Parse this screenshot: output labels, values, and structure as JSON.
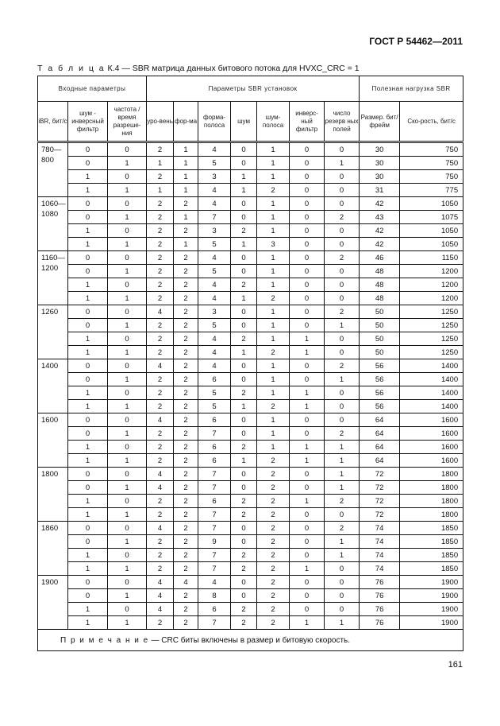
{
  "doc_header": "ГОСТ Р 54462—2011",
  "caption": {
    "label": "Т а б л и ц а",
    "text": "К.4 — SBR матрица данных битового потока для HVXC_CRC = 1"
  },
  "table": {
    "groups": [
      "Входные параметры",
      "Параметры SBR установок",
      "Полезная нагрузка SBR"
    ],
    "columns": [
      "iBR, бит/с",
      "шум - инверсный фильтр",
      "частота / время разреше-ния",
      "уро-вень",
      "фор-ма",
      "форма-полоса",
      "шум",
      "шум-полоса",
      "инверс-ный фильтр",
      "число резерв ных полей",
      "Размер. бит/фрейм",
      "Ско-рость, бит/с"
    ],
    "groups_rows": [
      {
        "ibr": "780— 800",
        "rows": [
          [
            0,
            0,
            2,
            1,
            4,
            0,
            1,
            0,
            0,
            30,
            750
          ],
          [
            0,
            1,
            1,
            1,
            5,
            0,
            1,
            0,
            1,
            30,
            750
          ],
          [
            1,
            0,
            2,
            1,
            3,
            1,
            1,
            0,
            0,
            30,
            750
          ],
          [
            1,
            1,
            1,
            1,
            4,
            1,
            2,
            0,
            0,
            31,
            775
          ]
        ]
      },
      {
        "ibr": "1060— 1080",
        "rows": [
          [
            0,
            0,
            2,
            2,
            4,
            0,
            1,
            0,
            0,
            42,
            1050
          ],
          [
            0,
            1,
            2,
            1,
            7,
            0,
            1,
            0,
            2,
            43,
            1075
          ],
          [
            1,
            0,
            2,
            2,
            3,
            2,
            1,
            0,
            0,
            42,
            1050
          ],
          [
            1,
            1,
            2,
            1,
            5,
            1,
            3,
            0,
            0,
            42,
            1050
          ]
        ]
      },
      {
        "ibr": "1160— 1200",
        "rows": [
          [
            0,
            0,
            2,
            2,
            4,
            0,
            1,
            0,
            2,
            46,
            1150
          ],
          [
            0,
            1,
            2,
            2,
            5,
            0,
            1,
            0,
            0,
            48,
            1200
          ],
          [
            1,
            0,
            2,
            2,
            4,
            2,
            1,
            0,
            0,
            48,
            1200
          ],
          [
            1,
            1,
            2,
            2,
            4,
            1,
            2,
            0,
            0,
            48,
            1200
          ]
        ]
      },
      {
        "ibr": "1260",
        "rows": [
          [
            0,
            0,
            4,
            2,
            3,
            0,
            1,
            0,
            2,
            50,
            1250
          ],
          [
            0,
            1,
            2,
            2,
            5,
            0,
            1,
            0,
            1,
            50,
            1250
          ],
          [
            1,
            0,
            2,
            2,
            4,
            2,
            1,
            1,
            0,
            50,
            1250
          ],
          [
            1,
            1,
            2,
            2,
            4,
            1,
            2,
            1,
            0,
            50,
            1250
          ]
        ]
      },
      {
        "ibr": "1400",
        "rows": [
          [
            0,
            0,
            4,
            2,
            4,
            0,
            1,
            0,
            2,
            56,
            1400
          ],
          [
            0,
            1,
            2,
            2,
            6,
            0,
            1,
            0,
            1,
            56,
            1400
          ],
          [
            1,
            0,
            2,
            2,
            5,
            2,
            1,
            1,
            0,
            56,
            1400
          ],
          [
            1,
            1,
            2,
            2,
            5,
            1,
            2,
            1,
            0,
            56,
            1400
          ]
        ]
      },
      {
        "ibr": "1600",
        "rows": [
          [
            0,
            0,
            4,
            2,
            6,
            0,
            1,
            0,
            0,
            64,
            1600
          ],
          [
            0,
            1,
            2,
            2,
            7,
            0,
            1,
            0,
            2,
            64,
            1600
          ],
          [
            1,
            0,
            2,
            2,
            6,
            2,
            1,
            1,
            1,
            64,
            1600
          ],
          [
            1,
            1,
            2,
            2,
            6,
            1,
            2,
            1,
            1,
            64,
            1600
          ]
        ]
      },
      {
        "ibr": "1800",
        "rows": [
          [
            0,
            0,
            4,
            2,
            7,
            0,
            2,
            0,
            1,
            72,
            1800
          ],
          [
            0,
            1,
            4,
            2,
            7,
            0,
            2,
            0,
            1,
            72,
            1800
          ],
          [
            1,
            0,
            2,
            2,
            6,
            2,
            2,
            1,
            2,
            72,
            1800
          ],
          [
            1,
            1,
            2,
            2,
            7,
            2,
            2,
            0,
            0,
            72,
            1800
          ]
        ]
      },
      {
        "ibr": "1860",
        "rows": [
          [
            0,
            0,
            4,
            2,
            7,
            0,
            2,
            0,
            2,
            74,
            1850
          ],
          [
            0,
            1,
            2,
            2,
            9,
            0,
            2,
            0,
            1,
            74,
            1850
          ],
          [
            1,
            0,
            2,
            2,
            7,
            2,
            2,
            0,
            1,
            74,
            1850
          ],
          [
            1,
            1,
            2,
            2,
            7,
            2,
            2,
            1,
            0,
            74,
            1850
          ]
        ]
      },
      {
        "ibr": "1900",
        "rows": [
          [
            0,
            0,
            4,
            4,
            4,
            0,
            2,
            0,
            0,
            76,
            1900
          ],
          [
            0,
            1,
            4,
            2,
            8,
            0,
            2,
            0,
            0,
            76,
            1900
          ],
          [
            1,
            0,
            4,
            2,
            6,
            2,
            2,
            0,
            0,
            76,
            1900
          ],
          [
            1,
            1,
            2,
            2,
            7,
            2,
            2,
            1,
            1,
            76,
            1900
          ]
        ]
      }
    ],
    "note": {
      "label": "П р и м е ч а н и е",
      "text": "— CRC биты включены в размер и битовую скорость."
    }
  },
  "page_number": "161"
}
